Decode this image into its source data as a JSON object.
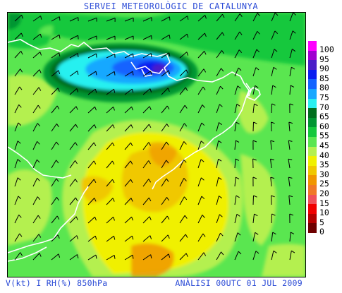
{
  "header": {
    "title": "SERVEI METEOROLÒGIC DE CATALUNYA"
  },
  "footer": {
    "variables": "V(kt) I RH(%) 850hPa",
    "analysis": "ANÀLISI 00UTC 01 JUL 2009"
  },
  "legend": {
    "entries": [
      {
        "label": "100",
        "color": "#ff00ff"
      },
      {
        "label": "95",
        "color": "#a000d0"
      },
      {
        "label": "90",
        "color": "#4a1ec8"
      },
      {
        "label": "85",
        "color": "#0a1ef0"
      },
      {
        "label": "80",
        "color": "#1464ff"
      },
      {
        "label": "75",
        "color": "#18a8ff"
      },
      {
        "label": "70",
        "color": "#28f0f0"
      },
      {
        "label": "65",
        "color": "#006e1e"
      },
      {
        "label": "60",
        "color": "#009632"
      },
      {
        "label": "55",
        "color": "#14c83c"
      },
      {
        "label": "45",
        "color": "#5ae650"
      },
      {
        "label": "40",
        "color": "#b4f050"
      },
      {
        "label": "35",
        "color": "#f0f000"
      },
      {
        "label": "30",
        "color": "#f0c800"
      },
      {
        "label": "25",
        "color": "#f09600"
      },
      {
        "label": "20",
        "color": "#f07828"
      },
      {
        "label": "15",
        "color": "#f0505a"
      },
      {
        "label": "10",
        "color": "#f00000"
      },
      {
        "label": "5",
        "color": "#b40000"
      },
      {
        "label": "0",
        "color": "#6e0000"
      }
    ]
  },
  "map": {
    "background_color": "#5ae650",
    "coastline_color": "#ffffff",
    "wind_barb_color": "#000000"
  }
}
